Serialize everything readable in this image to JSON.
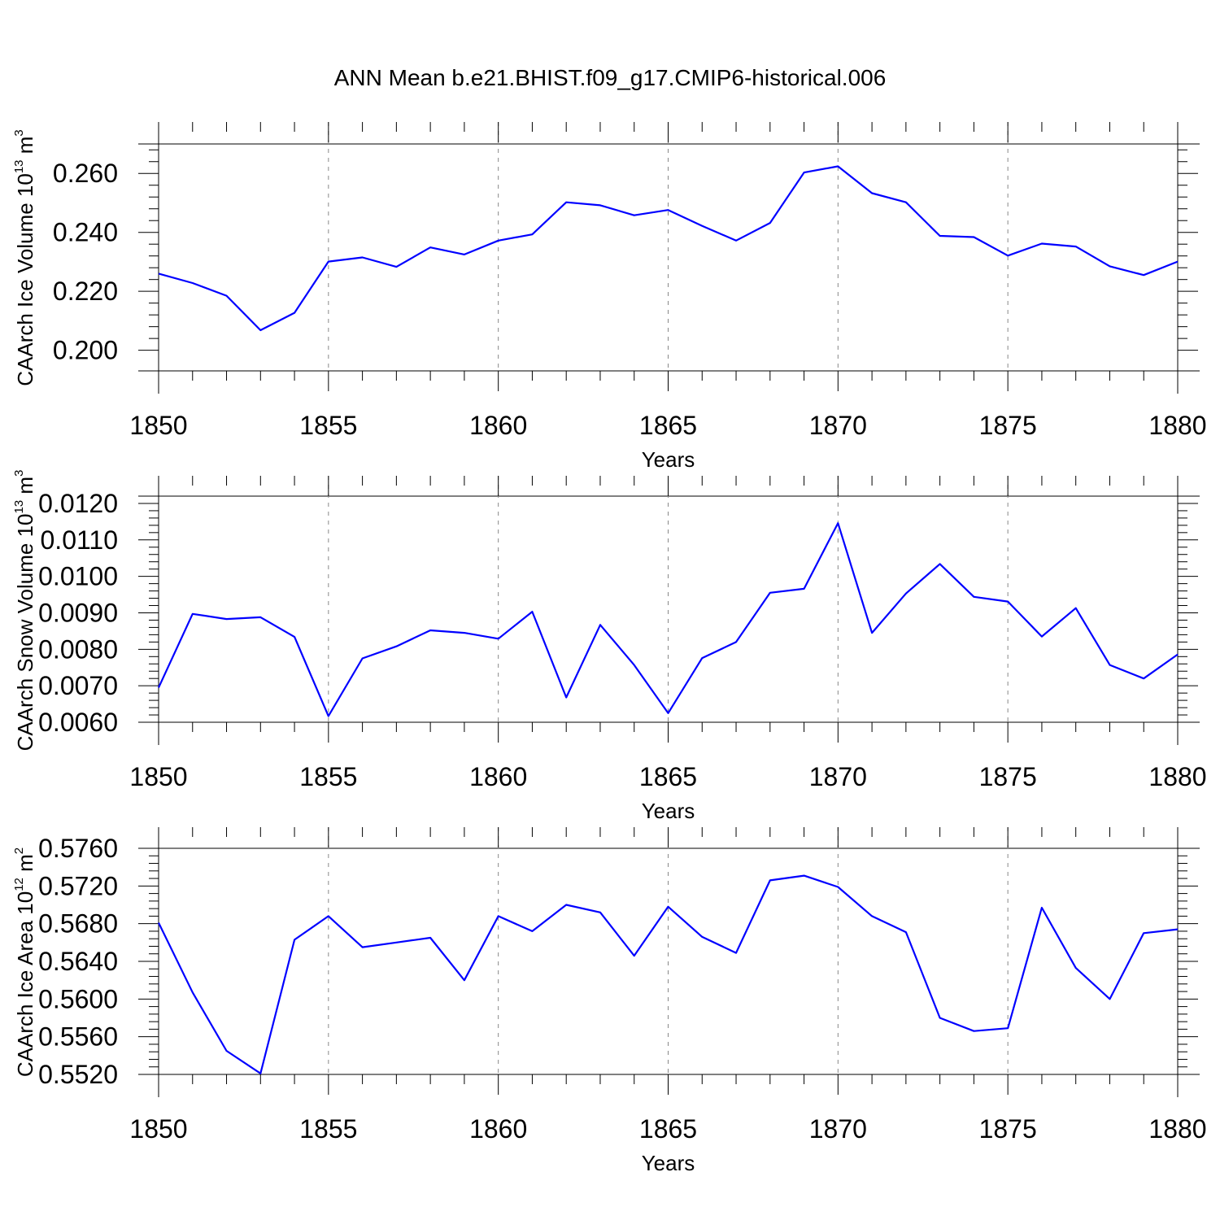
{
  "title": "ANN Mean b.e21.BHIST.f09_g17.CMIP6-historical.006",
  "colors": {
    "series": "#0000ff",
    "axes": "#000000",
    "grid": "#888888"
  },
  "chart_data": [
    {
      "type": "line",
      "ylabel": {
        "text": "CAArch Ice Volume 10",
        "exp": "13",
        "unit": " m",
        "unit_exp": "3"
      },
      "xlabel": "Years",
      "xlim": [
        1850,
        1880
      ],
      "ylim": [
        0.193,
        0.27
      ],
      "xticks": [
        1850,
        1855,
        1860,
        1865,
        1870,
        1875,
        1880
      ],
      "xtick_labels": [
        "1850",
        "1855",
        "1860",
        "1865",
        "1870",
        "1875",
        "1880"
      ],
      "yticks": [
        0.2,
        0.22,
        0.24,
        0.26
      ],
      "ytick_labels": [
        "0.200",
        "0.220",
        "0.240",
        "0.260"
      ],
      "grid": "vertical dashed at major x ticks",
      "series": [
        {
          "x": [
            1850,
            1851,
            1852,
            1853,
            1854,
            1855,
            1856,
            1857,
            1858,
            1859,
            1860,
            1861,
            1862,
            1863,
            1864,
            1865,
            1866,
            1867,
            1868,
            1869,
            1870,
            1871,
            1872,
            1873,
            1874,
            1875,
            1876,
            1877,
            1878,
            1879,
            1880
          ],
          "values": [
            0.226,
            0.2228,
            0.2185,
            0.2068,
            0.2127,
            0.2301,
            0.2315,
            0.2283,
            0.2349,
            0.2325,
            0.2372,
            0.2393,
            0.2502,
            0.2492,
            0.2458,
            0.2476,
            0.2422,
            0.2372,
            0.2432,
            0.2603,
            0.2624,
            0.2533,
            0.2502,
            0.2388,
            0.2384,
            0.2321,
            0.2362,
            0.2352,
            0.2285,
            0.2255,
            0.2301
          ]
        }
      ]
    },
    {
      "type": "line",
      "ylabel": {
        "text": "CAArch Snow Volume 10",
        "exp": "13",
        "unit": " m",
        "unit_exp": "3"
      },
      "xlabel": "Years",
      "xlim": [
        1850,
        1880
      ],
      "ylim": [
        0.006,
        0.0122
      ],
      "xticks": [
        1850,
        1855,
        1860,
        1865,
        1870,
        1875,
        1880
      ],
      "xtick_labels": [
        "1850",
        "1855",
        "1860",
        "1865",
        "1870",
        "1875",
        "1880"
      ],
      "yticks": [
        0.006,
        0.007,
        0.008,
        0.009,
        0.01,
        0.011,
        0.012
      ],
      "ytick_labels": [
        "0.0060",
        "0.0070",
        "0.0080",
        "0.0090",
        "0.0100",
        "0.0110",
        "0.0120"
      ],
      "grid": "vertical dashed at major x ticks",
      "series": [
        {
          "x": [
            1850,
            1851,
            1852,
            1853,
            1854,
            1855,
            1856,
            1857,
            1858,
            1859,
            1860,
            1861,
            1862,
            1863,
            1864,
            1865,
            1866,
            1867,
            1868,
            1869,
            1870,
            1871,
            1872,
            1873,
            1874,
            1875,
            1876,
            1877,
            1878,
            1879,
            1880
          ],
          "values": [
            0.00695,
            0.00897,
            0.00883,
            0.00888,
            0.00834,
            0.00617,
            0.00775,
            0.00808,
            0.00852,
            0.00845,
            0.00829,
            0.00903,
            0.00668,
            0.00867,
            0.00757,
            0.00625,
            0.00776,
            0.0082,
            0.00955,
            0.00966,
            0.01146,
            0.00845,
            0.00953,
            0.01034,
            0.00944,
            0.00931,
            0.00835,
            0.00913,
            0.00757,
            0.0072,
            0.00786
          ]
        }
      ]
    },
    {
      "type": "line",
      "ylabel": {
        "text": "CAArch Ice Area 10",
        "exp": "12",
        "unit": " m",
        "unit_exp": "2"
      },
      "xlabel": "Years",
      "xlim": [
        1850,
        1880
      ],
      "ylim": [
        0.552,
        0.576
      ],
      "xticks": [
        1850,
        1855,
        1860,
        1865,
        1870,
        1875,
        1880
      ],
      "xtick_labels": [
        "1850",
        "1855",
        "1860",
        "1865",
        "1870",
        "1875",
        "1880"
      ],
      "yticks": [
        0.552,
        0.556,
        0.56,
        0.564,
        0.568,
        0.572,
        0.576
      ],
      "ytick_labels": [
        "0.5520",
        "0.5560",
        "0.5600",
        "0.5640",
        "0.5680",
        "0.5720",
        "0.5760"
      ],
      "grid": "vertical dashed at major x ticks",
      "series": [
        {
          "x": [
            1850,
            1851,
            1852,
            1853,
            1854,
            1855,
            1856,
            1857,
            1858,
            1859,
            1860,
            1861,
            1862,
            1863,
            1864,
            1865,
            1866,
            1867,
            1868,
            1869,
            1870,
            1871,
            1872,
            1873,
            1874,
            1875,
            1876,
            1877,
            1878,
            1879,
            1880
          ],
          "values": [
            0.5681,
            0.5607,
            0.5545,
            0.5521,
            0.5663,
            0.5688,
            0.5655,
            0.566,
            0.5665,
            0.562,
            0.5688,
            0.5672,
            0.57,
            0.5692,
            0.5646,
            0.5698,
            0.5666,
            0.5649,
            0.5726,
            0.5731,
            0.5719,
            0.5688,
            0.5671,
            0.558,
            0.5566,
            0.5569,
            0.5697,
            0.5633,
            0.56,
            0.567,
            0.5674
          ]
        }
      ]
    }
  ]
}
